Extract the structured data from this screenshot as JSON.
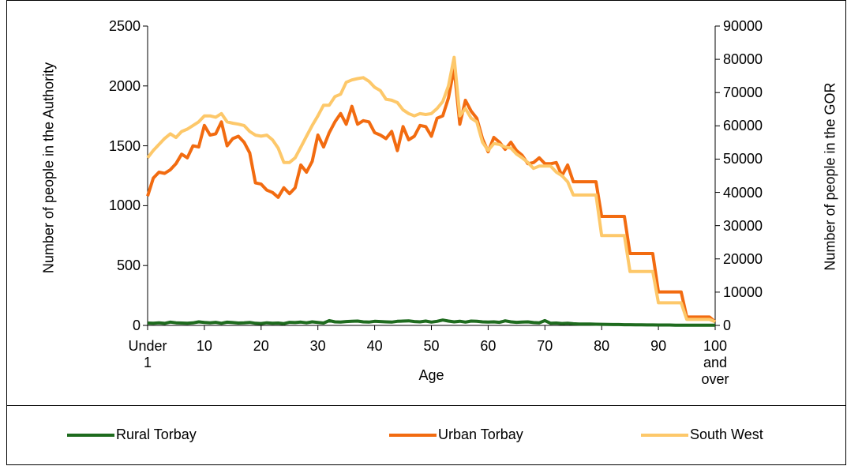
{
  "chart_data": {
    "type": "line",
    "x_label": "Age",
    "y_label": "Number of people in the Authority",
    "y2_label": "Number of people in the GOR",
    "categories": [
      "Under 1",
      null,
      null,
      null,
      null,
      null,
      null,
      null,
      null,
      null,
      "10",
      null,
      null,
      null,
      null,
      null,
      null,
      null,
      null,
      null,
      "20",
      null,
      null,
      null,
      null,
      null,
      null,
      null,
      null,
      null,
      "30",
      null,
      null,
      null,
      null,
      null,
      null,
      null,
      null,
      null,
      "40",
      null,
      null,
      null,
      null,
      null,
      null,
      null,
      null,
      null,
      "50",
      null,
      null,
      null,
      null,
      null,
      null,
      null,
      null,
      null,
      "60",
      null,
      null,
      null,
      null,
      null,
      null,
      null,
      null,
      null,
      "70",
      null,
      null,
      null,
      null,
      null,
      null,
      null,
      null,
      null,
      "80",
      null,
      null,
      null,
      null,
      null,
      null,
      null,
      null,
      null,
      "90",
      null,
      null,
      null,
      null,
      null,
      null,
      null,
      null,
      null,
      "100 and over"
    ],
    "ylim": [
      0,
      2500
    ],
    "yticks": [
      0,
      500,
      1000,
      1500,
      2000,
      2500
    ],
    "y2lim": [
      0,
      90000
    ],
    "y2ticks": [
      0,
      10000,
      20000,
      30000,
      40000,
      50000,
      60000,
      70000,
      80000,
      90000
    ],
    "legend": "bottom",
    "series": [
      {
        "name": "Rural Torbay",
        "color": "#1e6b1e",
        "values": [
          20,
          18,
          22,
          17,
          28,
          22,
          20,
          18,
          21,
          30,
          25,
          22,
          26,
          18,
          27,
          24,
          20,
          22,
          25,
          18,
          16,
          22,
          18,
          20,
          15,
          26,
          24,
          28,
          22,
          30,
          25,
          20,
          40,
          30,
          28,
          32,
          35,
          36,
          30,
          28,
          34,
          32,
          30,
          28,
          34,
          36,
          38,
          32,
          30,
          36,
          28,
          34,
          45,
          36,
          30,
          35,
          28,
          36,
          34,
          30,
          28,
          30,
          26,
          38,
          30,
          26,
          28,
          30,
          24,
          22,
          40,
          18,
          20,
          16,
          18,
          14,
          12,
          12,
          11,
          10,
          9,
          8,
          7,
          7,
          6,
          6,
          5,
          5,
          4,
          4,
          3,
          3,
          3,
          2,
          2,
          2,
          1,
          1,
          1,
          1,
          1
        ]
      },
      {
        "name": "Urban Torbay",
        "color": "#f26b10",
        "values": [
          1080,
          1230,
          1280,
          1270,
          1300,
          1350,
          1430,
          1400,
          1500,
          1490,
          1670,
          1590,
          1600,
          1700,
          1500,
          1560,
          1580,
          1530,
          1440,
          1190,
          1180,
          1130,
          1110,
          1070,
          1150,
          1100,
          1150,
          1340,
          1280,
          1370,
          1590,
          1490,
          1610,
          1700,
          1770,
          1680,
          1830,
          1680,
          1710,
          1700,
          1610,
          1590,
          1560,
          1620,
          1460,
          1660,
          1550,
          1580,
          1670,
          1660,
          1580,
          1730,
          1750,
          1900,
          2150,
          1680,
          1880,
          1790,
          1730,
          1560,
          1450,
          1570,
          1530,
          1470,
          1530,
          1460,
          1420,
          1350,
          1360,
          1400,
          1350,
          1350,
          1360,
          1250,
          1340,
          1200,
          1200,
          1200,
          1200,
          1200,
          910,
          910,
          910,
          910,
          910,
          600,
          600,
          600,
          600,
          600,
          280,
          280,
          280,
          280,
          280,
          70,
          70,
          70,
          70,
          70,
          30
        ]
      },
      {
        "name": "South West",
        "color": "#fdc86a",
        "axis": "y2",
        "values": [
          50400,
          52600,
          54400,
          56200,
          57600,
          56500,
          58300,
          59000,
          60100,
          61200,
          63000,
          63000,
          62600,
          63700,
          61200,
          60800,
          60500,
          60100,
          58300,
          57200,
          56900,
          57200,
          55800,
          53300,
          49000,
          49000,
          50400,
          53600,
          56900,
          60100,
          63000,
          66200,
          66200,
          68800,
          69500,
          73100,
          73800,
          74200,
          74500,
          73400,
          71600,
          70600,
          68000,
          67700,
          67000,
          64800,
          63700,
          63000,
          63700,
          63400,
          63700,
          65200,
          67300,
          72000,
          80600,
          63000,
          65200,
          62300,
          61200,
          55100,
          52600,
          54700,
          54400,
          53600,
          53300,
          51500,
          50400,
          49000,
          47200,
          47900,
          47900,
          47900,
          46100,
          45000,
          43200,
          39200,
          39200,
          39200,
          39200,
          39200,
          27000,
          27000,
          27000,
          27000,
          27000,
          16200,
          16200,
          16200,
          16200,
          16200,
          6800,
          6800,
          6800,
          6800,
          6800,
          1800,
          1800,
          1800,
          1800,
          1800,
          1100
        ]
      }
    ]
  }
}
